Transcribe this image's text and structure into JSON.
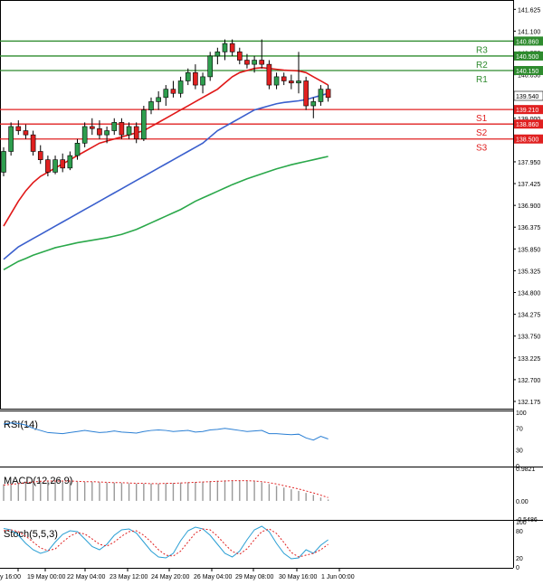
{
  "chart_data": {
    "type": "candlestick",
    "instrument_hint": "price chart with pivot levels",
    "x_labels": [
      "y 16:00",
      "19 May 00:00",
      "22 May 04:00",
      "23 May 12:00",
      "24 May 20:00",
      "26 May 04:00",
      "29 May 08:00",
      "30 May 16:00",
      "1 Jun 00:00"
    ],
    "price_axis": {
      "ticks": [
        "141.625",
        "141.100",
        "140.575",
        "140.050",
        "139.525",
        "139.000",
        "138.475",
        "137.950",
        "137.425",
        "136.900",
        "136.375",
        "135.850",
        "135.325",
        "134.800",
        "134.275",
        "133.750",
        "133.225",
        "132.700",
        "132.175"
      ],
      "range": [
        132.0,
        141.85
      ]
    },
    "current_price": "139.540",
    "levels": [
      {
        "name": "R3",
        "value": 140.86,
        "label": "140.860",
        "color": "#2e8b2e"
      },
      {
        "name": "R2",
        "value": 140.5,
        "label": "140.500",
        "color": "#2e8b2e"
      },
      {
        "name": "R1",
        "value": 140.15,
        "label": "140.150",
        "color": "#2e8b2e"
      },
      {
        "name": "S1",
        "value": 139.21,
        "label": "139.210",
        "color": "#e02020"
      },
      {
        "name": "S2",
        "value": 138.86,
        "label": "138.860",
        "color": "#e02020"
      },
      {
        "name": "S3",
        "value": 138.5,
        "label": "138.500",
        "color": "#e02020"
      }
    ],
    "candles": [
      [
        137.7,
        138.3,
        137.6,
        138.2
      ],
      [
        138.2,
        138.9,
        138.1,
        138.8
      ],
      [
        138.8,
        138.95,
        138.6,
        138.7
      ],
      [
        138.7,
        138.85,
        138.5,
        138.6
      ],
      [
        138.6,
        138.7,
        138.1,
        138.2
      ],
      [
        138.2,
        138.35,
        137.9,
        138.0
      ],
      [
        138.0,
        138.1,
        137.6,
        137.7
      ],
      [
        137.7,
        138.1,
        137.65,
        138.0
      ],
      [
        138.0,
        138.15,
        137.7,
        137.8
      ],
      [
        137.8,
        138.2,
        137.75,
        138.1
      ],
      [
        138.1,
        138.5,
        138.0,
        138.4
      ],
      [
        138.4,
        138.9,
        138.3,
        138.8
      ],
      [
        138.8,
        139.0,
        138.6,
        138.75
      ],
      [
        138.75,
        138.95,
        138.5,
        138.6
      ],
      [
        138.6,
        138.8,
        138.4,
        138.7
      ],
      [
        138.7,
        139.0,
        138.6,
        138.9
      ],
      [
        138.9,
        139.0,
        138.5,
        138.6
      ],
      [
        138.6,
        138.9,
        138.5,
        138.8
      ],
      [
        138.8,
        138.9,
        138.4,
        138.5
      ],
      [
        138.5,
        139.3,
        138.45,
        139.2
      ],
      [
        139.2,
        139.5,
        139.1,
        139.4
      ],
      [
        139.4,
        139.65,
        139.2,
        139.5
      ],
      [
        139.5,
        139.8,
        139.3,
        139.7
      ],
      [
        139.7,
        139.9,
        139.5,
        139.6
      ],
      [
        139.6,
        140.0,
        139.5,
        139.9
      ],
      [
        139.9,
        140.2,
        139.8,
        140.1
      ],
      [
        140.1,
        140.3,
        139.7,
        139.8
      ],
      [
        139.8,
        140.1,
        139.6,
        140.0
      ],
      [
        140.0,
        140.6,
        139.9,
        140.5
      ],
      [
        140.5,
        140.7,
        140.3,
        140.6
      ],
      [
        140.6,
        140.9,
        140.4,
        140.8
      ],
      [
        140.8,
        140.9,
        140.5,
        140.6
      ],
      [
        140.6,
        140.7,
        140.3,
        140.4
      ],
      [
        140.4,
        140.55,
        140.2,
        140.3
      ],
      [
        140.3,
        140.5,
        140.1,
        140.4
      ],
      [
        140.4,
        140.9,
        140.2,
        140.3
      ],
      [
        140.3,
        140.4,
        139.7,
        139.8
      ],
      [
        139.8,
        140.1,
        139.7,
        140.0
      ],
      [
        140.0,
        140.1,
        139.8,
        139.9
      ],
      [
        139.9,
        140.05,
        139.7,
        139.85
      ],
      [
        139.85,
        140.6,
        139.6,
        139.9
      ],
      [
        139.9,
        140.0,
        139.2,
        139.3
      ],
      [
        139.3,
        139.5,
        139.0,
        139.4
      ],
      [
        139.4,
        139.8,
        139.3,
        139.7
      ],
      [
        139.7,
        139.8,
        139.4,
        139.5
      ]
    ],
    "moving_averages": [
      {
        "name": "MA fast",
        "color": "#e01818",
        "values": [
          136.4,
          136.7,
          137.0,
          137.25,
          137.45,
          137.6,
          137.7,
          137.8,
          137.9,
          138.0,
          138.1,
          138.2,
          138.3,
          138.4,
          138.45,
          138.5,
          138.55,
          138.6,
          138.65,
          138.7,
          138.8,
          138.9,
          139.0,
          139.1,
          139.2,
          139.3,
          139.4,
          139.5,
          139.6,
          139.7,
          139.85,
          140.0,
          140.1,
          140.15,
          140.2,
          140.22,
          140.2,
          140.18,
          140.16,
          140.15,
          140.14,
          140.1,
          140.0,
          139.9,
          139.8
        ]
      },
      {
        "name": "MA mid",
        "color": "#3a5fcd",
        "values": [
          135.6,
          135.75,
          135.9,
          136.0,
          136.1,
          136.2,
          136.3,
          136.4,
          136.5,
          136.6,
          136.7,
          136.8,
          136.9,
          137.0,
          137.1,
          137.2,
          137.3,
          137.4,
          137.5,
          137.6,
          137.7,
          137.8,
          137.9,
          138.0,
          138.1,
          138.2,
          138.3,
          138.4,
          138.55,
          138.7,
          138.8,
          138.9,
          139.0,
          139.1,
          139.2,
          139.25,
          139.3,
          139.35,
          139.38,
          139.4,
          139.42,
          139.45,
          139.5,
          139.55,
          139.6
        ]
      },
      {
        "name": "MA slow",
        "color": "#2aa84a",
        "values": [
          135.35,
          135.45,
          135.55,
          135.62,
          135.7,
          135.76,
          135.82,
          135.88,
          135.92,
          135.96,
          136.0,
          136.03,
          136.06,
          136.09,
          136.12,
          136.16,
          136.2,
          136.26,
          136.32,
          136.4,
          136.48,
          136.56,
          136.64,
          136.72,
          136.8,
          136.9,
          137.0,
          137.08,
          137.16,
          137.24,
          137.32,
          137.4,
          137.47,
          137.54,
          137.6,
          137.66,
          137.72,
          137.78,
          137.83,
          137.88,
          137.92,
          137.96,
          138.0,
          138.04,
          138.08
        ]
      }
    ],
    "indicators": [
      {
        "name": "RSI",
        "label": "RSI(14)",
        "ticks": [
          "100",
          "70",
          "30",
          "0"
        ],
        "range": [
          0,
          100
        ],
        "values": [
          78,
          80,
          79,
          76,
          70,
          66,
          62,
          61,
          60,
          62,
          64,
          66,
          64,
          62,
          63,
          65,
          63,
          62,
          61,
          64,
          66,
          67,
          66,
          64,
          65,
          66,
          63,
          64,
          67,
          68,
          70,
          68,
          66,
          64,
          65,
          66,
          60,
          60,
          59,
          58,
          59,
          52,
          48,
          55,
          50
        ]
      },
      {
        "name": "MACD",
        "label": "MACD(12,26,9)",
        "ticks": [
          "0.9821",
          "0.00",
          "-0.5486"
        ],
        "range": [
          -0.5486,
          0.9821
        ],
        "histogram": [
          0.5,
          0.52,
          0.55,
          0.58,
          0.6,
          0.61,
          0.61,
          0.61,
          0.6,
          0.59,
          0.58,
          0.57,
          0.57,
          0.56,
          0.55,
          0.55,
          0.54,
          0.53,
          0.52,
          0.52,
          0.52,
          0.52,
          0.53,
          0.54,
          0.55,
          0.56,
          0.57,
          0.58,
          0.6,
          0.61,
          0.62,
          0.62,
          0.62,
          0.61,
          0.59,
          0.56,
          0.51,
          0.45,
          0.4,
          0.35,
          0.3,
          0.24,
          0.18,
          0.1,
          0.04
        ],
        "signal": [
          0.48,
          0.5,
          0.52,
          0.55,
          0.57,
          0.59,
          0.6,
          0.6,
          0.6,
          0.6,
          0.59,
          0.58,
          0.58,
          0.57,
          0.56,
          0.55,
          0.55,
          0.54,
          0.53,
          0.53,
          0.52,
          0.52,
          0.53,
          0.53,
          0.54,
          0.55,
          0.56,
          0.57,
          0.58,
          0.59,
          0.6,
          0.61,
          0.61,
          0.61,
          0.6,
          0.58,
          0.55,
          0.51,
          0.46,
          0.41,
          0.36,
          0.3,
          0.24,
          0.17,
          0.1
        ]
      },
      {
        "name": "Stoch",
        "label": "Stoch(5,5,3)",
        "ticks": [
          "100",
          "80",
          "20",
          "0"
        ],
        "range": [
          0,
          100
        ],
        "k": [
          85,
          82,
          70,
          52,
          38,
          30,
          35,
          55,
          72,
          80,
          78,
          62,
          45,
          38,
          50,
          70,
          82,
          84,
          75,
          55,
          35,
          22,
          20,
          30,
          58,
          80,
          88,
          84,
          70,
          50,
          30,
          22,
          35,
          60,
          82,
          90,
          78,
          52,
          30,
          18,
          20,
          38,
          30,
          48,
          60
        ],
        "d": [
          80,
          82,
          78,
          68,
          55,
          42,
          36,
          40,
          55,
          68,
          76,
          73,
          62,
          50,
          46,
          55,
          68,
          78,
          80,
          70,
          55,
          38,
          26,
          24,
          35,
          55,
          75,
          84,
          82,
          68,
          50,
          34,
          28,
          40,
          60,
          78,
          84,
          74,
          54,
          32,
          22,
          26,
          30,
          38,
          50
        ]
      }
    ]
  }
}
